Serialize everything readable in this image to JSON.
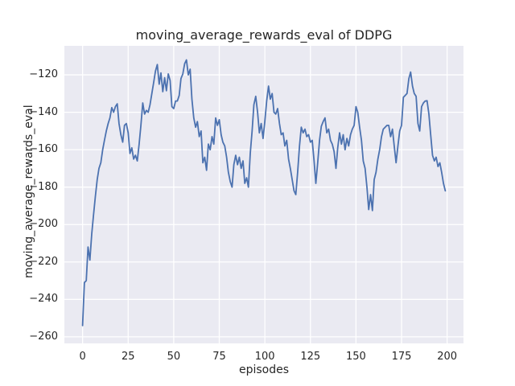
{
  "chart_data": {
    "type": "line",
    "title": "moving_average_rewards_eval of DDPG",
    "xlabel": "episodes",
    "ylabel": "moving_average_rewards_eval",
    "grid": true,
    "legend": null,
    "xlim": [
      -10,
      209
    ],
    "ylim": [
      -263.5,
      -104.5
    ],
    "xticks": [
      0,
      25,
      50,
      75,
      100,
      125,
      150,
      175,
      200
    ],
    "yticks": [
      -120,
      -140,
      -160,
      -180,
      -200,
      -220,
      -240,
      -260
    ],
    "style": {
      "plot_bg": "#eaeaf2",
      "grid_color": "#ffffff",
      "line_color": "#4c72b0",
      "text_color": "#262626",
      "figure_bg": "#ffffff"
    },
    "series": [
      {
        "name": "moving_average_rewards_eval",
        "color": "#4c72b0",
        "x_start": 0,
        "x_step": 1,
        "y": [
          -254,
          -231,
          -230,
          -212,
          -219,
          -205,
          -195,
          -185,
          -176,
          -170,
          -167,
          -160,
          -155,
          -150,
          -146,
          -143,
          -137.5,
          -140,
          -137,
          -135.5,
          -146,
          -152,
          -156,
          -147,
          -146,
          -151,
          -162,
          -159,
          -165,
          -163,
          -166,
          -157,
          -147,
          -135,
          -141,
          -139,
          -140,
          -136,
          -130,
          -124,
          -118,
          -114.5,
          -125,
          -119,
          -129,
          -121.5,
          -128.5,
          -119.5,
          -123,
          -137,
          -138,
          -134,
          -134,
          -131,
          -122,
          -119.5,
          -114,
          -112,
          -120,
          -117,
          -133,
          -143,
          -148,
          -145,
          -153,
          -150,
          -167,
          -164,
          -171,
          -157,
          -160,
          -153,
          -157,
          -143,
          -147,
          -144,
          -152,
          -156,
          -158,
          -164,
          -172,
          -177,
          -180,
          -168,
          -163,
          -168,
          -164,
          -170,
          -166,
          -178,
          -175,
          -180,
          -162,
          -150,
          -136,
          -131.5,
          -140,
          -151,
          -146,
          -154,
          -145,
          -134,
          -126,
          -133,
          -130,
          -140,
          -141,
          -138,
          -146,
          -152,
          -151,
          -158,
          -155,
          -165,
          -170,
          -176,
          -182,
          -184,
          -172,
          -158,
          -148,
          -151,
          -149,
          -153,
          -152,
          -156,
          -155,
          -166,
          -178,
          -167,
          -155,
          -147.5,
          -145,
          -143,
          -151,
          -149,
          -155,
          -157,
          -161,
          -170,
          -159,
          -151,
          -157,
          -152,
          -160,
          -154,
          -158,
          -152,
          -149,
          -147,
          -137,
          -140,
          -148,
          -155,
          -166,
          -170,
          -180,
          -192,
          -184,
          -192.5,
          -176,
          -172,
          -165,
          -160,
          -153,
          -149,
          -148,
          -147,
          -147,
          -153,
          -149,
          -158,
          -167,
          -158,
          -150,
          -147,
          -132,
          -131,
          -130,
          -122,
          -118.5,
          -126,
          -130,
          -131.5,
          -146,
          -150,
          -137,
          -135,
          -134,
          -133.8,
          -141,
          -152,
          -163,
          -166,
          -164,
          -169,
          -167,
          -172,
          -178,
          -182
        ]
      }
    ]
  }
}
